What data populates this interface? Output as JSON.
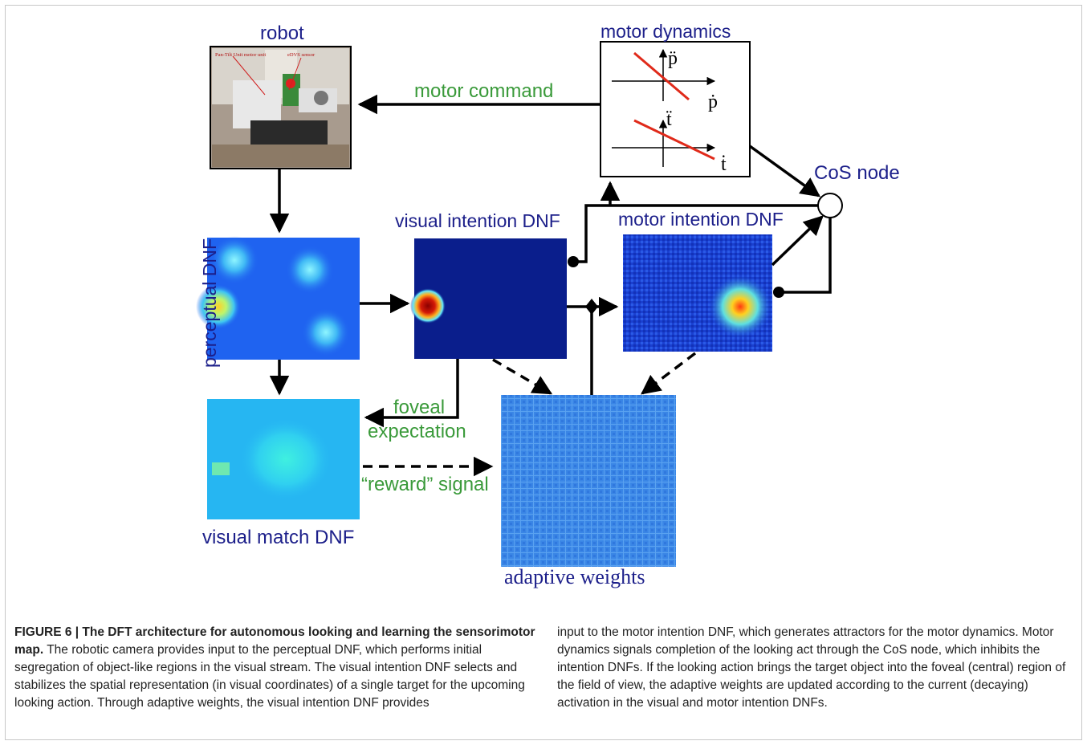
{
  "diagram": {
    "labels": {
      "robot": "robot",
      "motor_dynamics": "motor dynamics",
      "motor_command": "motor command",
      "cos_node": "CoS node",
      "visual_intention": "visual intention DNF",
      "motor_intention": "motor intention DNF",
      "perceptual": "perceptual DNF",
      "foveal": "foveal",
      "expectation": "expectation",
      "reward": "“reward” signal",
      "visual_match": "visual match DNF",
      "adaptive_weights": "adaptive weights"
    },
    "robot_photo_labels": {
      "left": "Pan-Tilt Unit motor unit",
      "right": "eDVS sensor"
    },
    "motor_plot": {
      "top_y": "p̈",
      "top_x": "ṗ",
      "bottom_y": "ẗ",
      "bottom_x": "ṫ"
    },
    "colors": {
      "label_navy": "#1c1f8a",
      "label_green": "#3a9a3a",
      "arrow": "#000000",
      "plot_line": "#e02a1a"
    }
  },
  "caption": {
    "figure_label": "FIGURE 6 | The DFT architecture for autonomous looking and learning the sensorimotor map.",
    "text_left": "The robotic camera provides input to the perceptual DNF, which performs initial segregation of object-like regions in the visual stream. The visual intention DNF selects and stabilizes the spatial representation (in visual coordinates) of a single target for the upcoming looking action. Through adaptive weights, the visual intention DNF provides",
    "text_right": "input to the motor intention DNF, which generates attractors for the motor dynamics. Motor dynamics signals completion of the looking act through the CoS node, which inhibits the intention DNFs. If the looking action brings the target object into the foveal (central) region of the field of view, the adaptive weights are updated according to the current (decaying) activation in the visual and motor intention DNFs."
  }
}
